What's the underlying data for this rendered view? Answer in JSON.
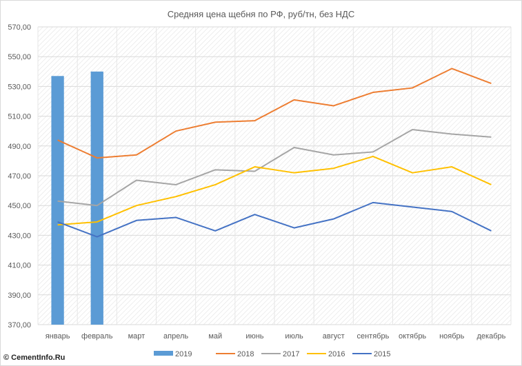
{
  "chart_data": {
    "type": "line",
    "title": "Средняя цена щебня по РФ, руб/тн, без НДС",
    "xlabel": "",
    "ylabel": "",
    "ylim": [
      370,
      570
    ],
    "yticks": [
      "370,00",
      "390,00",
      "410,00",
      "430,00",
      "450,00",
      "470,00",
      "490,00",
      "510,00",
      "530,00",
      "550,00",
      "570,00"
    ],
    "categories": [
      "январь",
      "февраль",
      "март",
      "апрель",
      "май",
      "июнь",
      "июль",
      "август",
      "сентябрь",
      "октябрь",
      "ноябрь",
      "декабрь"
    ],
    "grid": true,
    "legend_position": "bottom",
    "series": [
      {
        "name": "2019",
        "kind": "bar",
        "color": "#5b9bd5",
        "values": [
          537,
          540,
          null,
          null,
          null,
          null,
          null,
          null,
          null,
          null,
          null,
          null
        ]
      },
      {
        "name": "2018",
        "kind": "line",
        "color": "#ed7d31",
        "values": [
          494,
          482,
          484,
          500,
          506,
          507,
          521,
          517,
          526,
          529,
          542,
          532
        ]
      },
      {
        "name": "2017",
        "kind": "line",
        "color": "#a5a5a5",
        "values": [
          453,
          450,
          467,
          464,
          474,
          473,
          489,
          484,
          486,
          501,
          498,
          496
        ]
      },
      {
        "name": "2016",
        "kind": "line",
        "color": "#ffc000",
        "values": [
          437,
          439,
          450,
          456,
          464,
          476,
          472,
          475,
          483,
          472,
          476,
          464
        ]
      },
      {
        "name": "2015",
        "kind": "line",
        "color": "#4472c4",
        "values": [
          439,
          429,
          440,
          442,
          433,
          444,
          435,
          441,
          452,
          449,
          446,
          433
        ]
      }
    ]
  },
  "watermark": {
    "copyright": "©",
    "site": "CementInfo.Ru"
  }
}
